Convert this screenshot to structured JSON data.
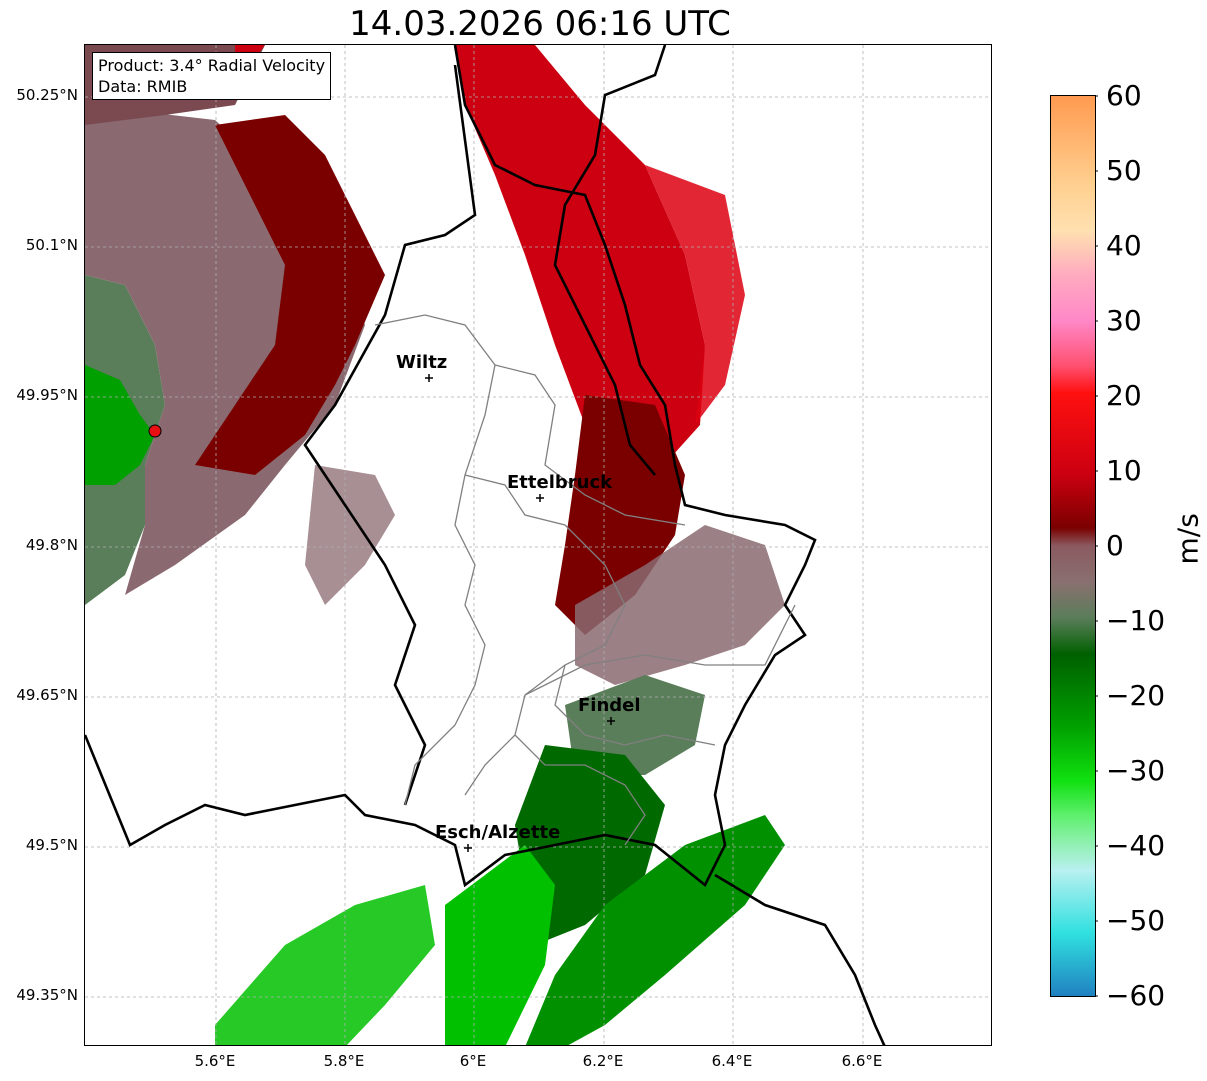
{
  "title": "14.03.2026 06:16 UTC",
  "info": {
    "product": "Product: 3.4° Radial Velocity",
    "data_source": "Data: RMIB"
  },
  "lat_labels": [
    "50.25°N",
    "50.1°N",
    "49.95°N",
    "49.8°N",
    "49.65°N",
    "49.5°N",
    "49.35°N"
  ],
  "lon_labels": [
    "5.6°E",
    "5.8°E",
    "6°E",
    "6.2°E",
    "6.4°E",
    "6.6°E"
  ],
  "cities": [
    {
      "name": "Wiltz"
    },
    {
      "name": "Ettelbruck"
    },
    {
      "name": "Findel"
    },
    {
      "name": "Esch/Alzette"
    }
  ],
  "colorbar": {
    "unit": "m/s",
    "ticks": [
      "60",
      "50",
      "40",
      "30",
      "20",
      "10",
      "0",
      "−10",
      "−20",
      "−30",
      "−40",
      "−50",
      "−60"
    ],
    "range": [
      -60,
      60
    ]
  },
  "colors": {
    "inbound_strong": "#00c000",
    "inbound": "#006a00",
    "inbound_weak": "#5a7d5a",
    "near_zero": "#8a6a70",
    "outbound_weak": "#7a0000",
    "outbound": "#cc0010",
    "outbound_strong": "#ff2a2a",
    "radar_site": "#e81010"
  }
}
